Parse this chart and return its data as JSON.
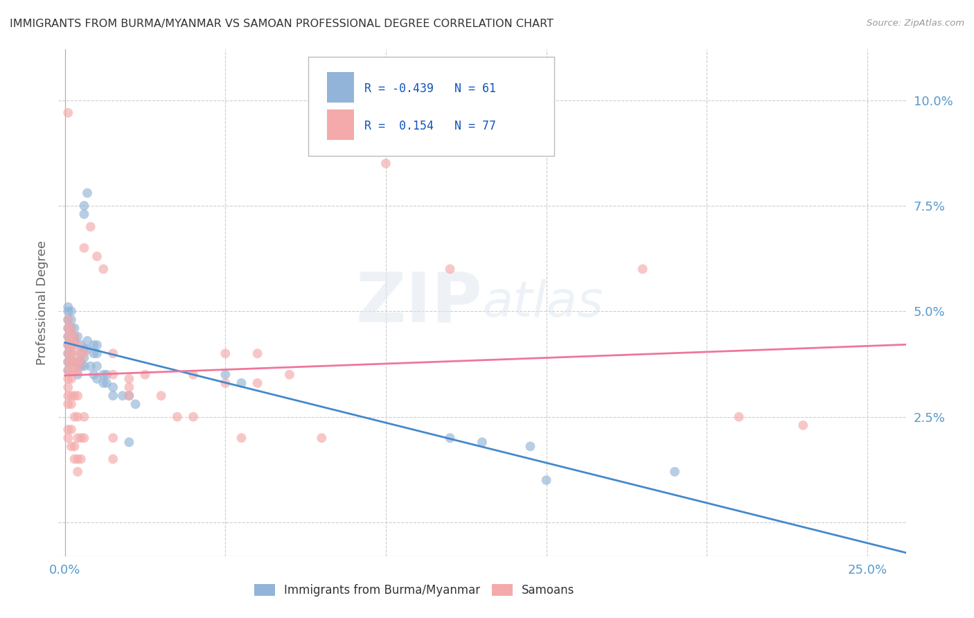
{
  "title": "IMMIGRANTS FROM BURMA/MYANMAR VS SAMOAN PROFESSIONAL DEGREE CORRELATION CHART",
  "source": "Source: ZipAtlas.com",
  "ylabel_label": "Professional Degree",
  "xlim": [
    -0.002,
    0.262
  ],
  "ylim": [
    -0.008,
    0.112
  ],
  "R_blue": -0.439,
  "N_blue": 61,
  "R_pink": 0.154,
  "N_pink": 77,
  "blue_color": "#92B4D8",
  "pink_color": "#F4AAAA",
  "blue_line_color": "#4488CC",
  "pink_line_color": "#EE7799",
  "grid_color": "#CCCCCC",
  "title_color": "#333333",
  "axis_tick_color": "#5599CC",
  "ylabel_color": "#666666",
  "source_color": "#999999",
  "watermark_color": "#DDDDDD",
  "background_color": "#FFFFFF",
  "blue_scatter": [
    [
      0.001,
      0.051
    ],
    [
      0.001,
      0.05
    ],
    [
      0.001,
      0.048
    ],
    [
      0.001,
      0.046
    ],
    [
      0.001,
      0.044
    ],
    [
      0.001,
      0.042
    ],
    [
      0.001,
      0.04
    ],
    [
      0.001,
      0.038
    ],
    [
      0.001,
      0.036
    ],
    [
      0.002,
      0.05
    ],
    [
      0.002,
      0.048
    ],
    [
      0.002,
      0.046
    ],
    [
      0.002,
      0.044
    ],
    [
      0.002,
      0.042
    ],
    [
      0.002,
      0.04
    ],
    [
      0.002,
      0.038
    ],
    [
      0.003,
      0.046
    ],
    [
      0.003,
      0.044
    ],
    [
      0.003,
      0.043
    ],
    [
      0.003,
      0.038
    ],
    [
      0.004,
      0.044
    ],
    [
      0.004,
      0.038
    ],
    [
      0.004,
      0.037
    ],
    [
      0.004,
      0.035
    ],
    [
      0.005,
      0.042
    ],
    [
      0.005,
      0.04
    ],
    [
      0.005,
      0.038
    ],
    [
      0.005,
      0.037
    ],
    [
      0.006,
      0.075
    ],
    [
      0.006,
      0.073
    ],
    [
      0.006,
      0.041
    ],
    [
      0.006,
      0.039
    ],
    [
      0.006,
      0.037
    ],
    [
      0.007,
      0.078
    ],
    [
      0.007,
      0.043
    ],
    [
      0.007,
      0.041
    ],
    [
      0.008,
      0.037
    ],
    [
      0.009,
      0.042
    ],
    [
      0.009,
      0.04
    ],
    [
      0.009,
      0.035
    ],
    [
      0.01,
      0.042
    ],
    [
      0.01,
      0.04
    ],
    [
      0.01,
      0.037
    ],
    [
      0.01,
      0.034
    ],
    [
      0.012,
      0.035
    ],
    [
      0.012,
      0.033
    ],
    [
      0.013,
      0.035
    ],
    [
      0.013,
      0.033
    ],
    [
      0.015,
      0.032
    ],
    [
      0.015,
      0.03
    ],
    [
      0.018,
      0.03
    ],
    [
      0.02,
      0.03
    ],
    [
      0.02,
      0.019
    ],
    [
      0.022,
      0.028
    ],
    [
      0.05,
      0.035
    ],
    [
      0.055,
      0.033
    ],
    [
      0.12,
      0.02
    ],
    [
      0.13,
      0.019
    ],
    [
      0.145,
      0.018
    ],
    [
      0.15,
      0.01
    ],
    [
      0.19,
      0.012
    ]
  ],
  "pink_scatter": [
    [
      0.001,
      0.097
    ],
    [
      0.001,
      0.048
    ],
    [
      0.001,
      0.046
    ],
    [
      0.001,
      0.044
    ],
    [
      0.001,
      0.042
    ],
    [
      0.001,
      0.04
    ],
    [
      0.001,
      0.038
    ],
    [
      0.001,
      0.036
    ],
    [
      0.001,
      0.034
    ],
    [
      0.001,
      0.032
    ],
    [
      0.001,
      0.03
    ],
    [
      0.001,
      0.028
    ],
    [
      0.001,
      0.022
    ],
    [
      0.001,
      0.02
    ],
    [
      0.002,
      0.046
    ],
    [
      0.002,
      0.044
    ],
    [
      0.002,
      0.042
    ],
    [
      0.002,
      0.04
    ],
    [
      0.002,
      0.038
    ],
    [
      0.002,
      0.036
    ],
    [
      0.002,
      0.034
    ],
    [
      0.002,
      0.03
    ],
    [
      0.002,
      0.028
    ],
    [
      0.002,
      0.022
    ],
    [
      0.002,
      0.018
    ],
    [
      0.003,
      0.044
    ],
    [
      0.003,
      0.042
    ],
    [
      0.003,
      0.04
    ],
    [
      0.003,
      0.038
    ],
    [
      0.003,
      0.036
    ],
    [
      0.003,
      0.03
    ],
    [
      0.003,
      0.025
    ],
    [
      0.003,
      0.018
    ],
    [
      0.003,
      0.015
    ],
    [
      0.004,
      0.042
    ],
    [
      0.004,
      0.038
    ],
    [
      0.004,
      0.036
    ],
    [
      0.004,
      0.03
    ],
    [
      0.004,
      0.025
    ],
    [
      0.004,
      0.02
    ],
    [
      0.004,
      0.015
    ],
    [
      0.004,
      0.012
    ],
    [
      0.005,
      0.04
    ],
    [
      0.005,
      0.038
    ],
    [
      0.005,
      0.02
    ],
    [
      0.005,
      0.015
    ],
    [
      0.006,
      0.065
    ],
    [
      0.006,
      0.04
    ],
    [
      0.006,
      0.025
    ],
    [
      0.006,
      0.02
    ],
    [
      0.008,
      0.07
    ],
    [
      0.01,
      0.063
    ],
    [
      0.012,
      0.06
    ],
    [
      0.015,
      0.04
    ],
    [
      0.015,
      0.035
    ],
    [
      0.015,
      0.02
    ],
    [
      0.015,
      0.015
    ],
    [
      0.02,
      0.034
    ],
    [
      0.02,
      0.032
    ],
    [
      0.02,
      0.03
    ],
    [
      0.025,
      0.035
    ],
    [
      0.03,
      0.03
    ],
    [
      0.035,
      0.025
    ],
    [
      0.04,
      0.035
    ],
    [
      0.04,
      0.025
    ],
    [
      0.05,
      0.04
    ],
    [
      0.05,
      0.033
    ],
    [
      0.055,
      0.02
    ],
    [
      0.06,
      0.04
    ],
    [
      0.06,
      0.033
    ],
    [
      0.07,
      0.035
    ],
    [
      0.08,
      0.02
    ],
    [
      0.1,
      0.085
    ],
    [
      0.12,
      0.06
    ],
    [
      0.18,
      0.06
    ],
    [
      0.21,
      0.025
    ],
    [
      0.23,
      0.023
    ]
  ]
}
